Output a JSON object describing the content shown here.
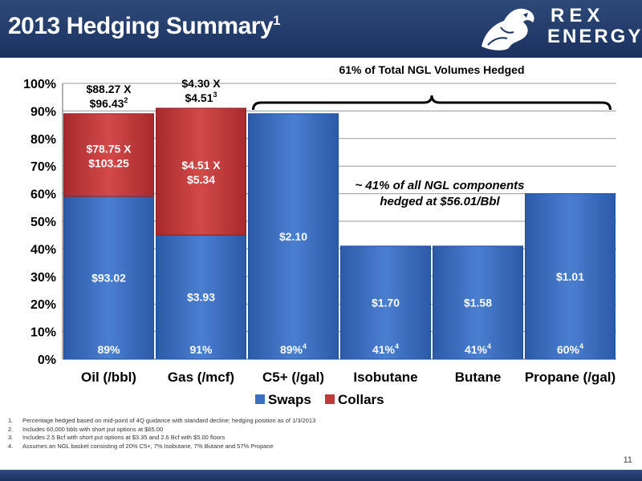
{
  "title": "2013 Hedging Summary",
  "title_sup": "1",
  "logo": {
    "line1": "REX",
    "line2": "ENERGY",
    "mark": "®"
  },
  "page_number": "11",
  "colors": {
    "swaps": "#3a6fc2",
    "collars": "#c0393b",
    "header": "#1f3766"
  },
  "footnotes": [
    {
      "num": "1.",
      "text": "Percentage hedged based on mid-point of 4Q guidance with standard decline; hedging position as of 1/3/2013"
    },
    {
      "num": "2.",
      "text": "Includes 60,000 bbls with short put options at $65.00"
    },
    {
      "num": "3.",
      "text": "Includes 2.5 Bcf with short put options at $3.35 and 2.6 Bcf with $5.00 floors"
    },
    {
      "num": "4.",
      "text": "Assumes an NGL basket consisting of 20% C5+, 7% Isobutane, 7% Butane and 57% Propane"
    }
  ],
  "chart_data": {
    "type": "bar",
    "stacked": true,
    "categories": [
      "Oil (/bbl)",
      "Gas (/mcf)",
      "C5+ (/gal)",
      "Isobutane",
      "Butane",
      "Propane (/gal)"
    ],
    "series": [
      {
        "name": "Swaps",
        "values": [
          59,
          45,
          89,
          41,
          41,
          60
        ]
      },
      {
        "name": "Collars",
        "values": [
          30,
          46,
          0,
          0,
          0,
          0
        ]
      }
    ],
    "ylim": [
      0,
      100
    ],
    "yticks": [
      "0%",
      "10%",
      "20%",
      "30%",
      "40%",
      "50%",
      "60%",
      "70%",
      "80%",
      "90%",
      "100%"
    ],
    "grid": true,
    "legend": "bottom",
    "swap_labels": [
      "$93.02",
      "$3.93",
      "$2.10",
      "$1.70",
      "$1.58",
      "$1.01"
    ],
    "collar_labels": [
      {
        "line1": "$78.75 X",
        "line2": "$103.25"
      },
      {
        "line1": "$4.51 X",
        "line2": "$5.34"
      }
    ],
    "total_labels": [
      {
        "text": "89%",
        "sup": ""
      },
      {
        "text": "91%",
        "sup": ""
      },
      {
        "text": "89%",
        "sup": "4"
      },
      {
        "text": "41%",
        "sup": "4"
      },
      {
        "text": "41%",
        "sup": "4"
      },
      {
        "text": "60%",
        "sup": "4"
      }
    ],
    "top_labels": [
      {
        "line1": "$88.27 X",
        "line2": "$96.43",
        "sup": "2"
      },
      {
        "line1": "$4.30 X",
        "line2": "$4.51",
        "sup": "3"
      }
    ],
    "brace_label": "61% of Total NGL Volumes Hedged",
    "annotation": {
      "line1": "~ 41% of all NGL components",
      "line2": "hedged at $56.01/Bbl"
    }
  }
}
